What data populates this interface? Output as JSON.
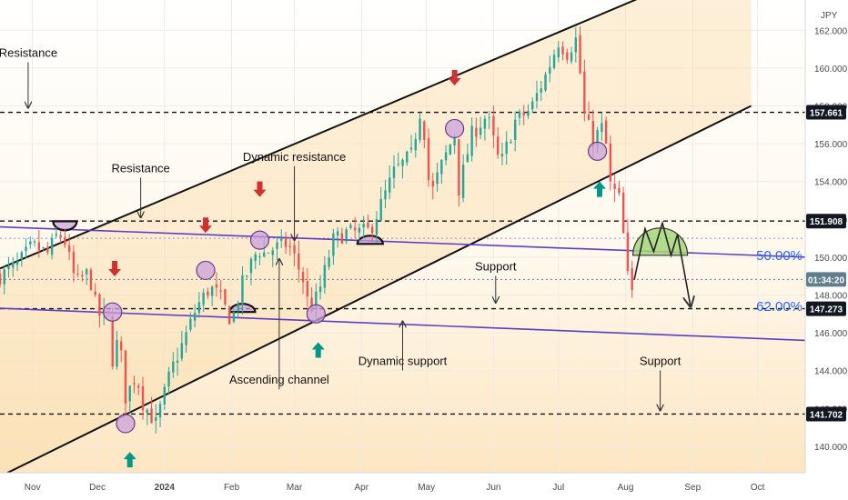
{
  "chart_data": {
    "type": "candlestick",
    "currency": "JPY",
    "ylim": [
      138.6,
      163.6
    ],
    "x_range": [
      "2023-10-17",
      "2024-10-23"
    ],
    "grid": true,
    "y_ticks": [
      140,
      142,
      144,
      146,
      148,
      150,
      152,
      154,
      156,
      158,
      160,
      162
    ],
    "x_ticks": [
      {
        "date": "2023-11-01",
        "label": "Nov"
      },
      {
        "date": "2023-12-01",
        "label": "Dec"
      },
      {
        "date": "2024-01-01",
        "label": "2024",
        "bold": true
      },
      {
        "date": "2024-02-01",
        "label": "Feb"
      },
      {
        "date": "2024-03-01",
        "label": "Mar"
      },
      {
        "date": "2024-04-01",
        "label": "Apr"
      },
      {
        "date": "2024-05-01",
        "label": "May"
      },
      {
        "date": "2024-06-01",
        "label": "Jun"
      },
      {
        "date": "2024-07-01",
        "label": "Jul"
      },
      {
        "date": "2024-08-01",
        "label": "Aug"
      },
      {
        "date": "2024-09-01",
        "label": "Sep"
      },
      {
        "date": "2024-10-01",
        "label": "Oct"
      }
    ],
    "price_path": [
      [
        "2023-10-17",
        149.0
      ],
      [
        "2023-10-25",
        149.6
      ],
      [
        "2023-11-01",
        150.6
      ],
      [
        "2023-11-08",
        150.2
      ],
      [
        "2023-11-13",
        151.3
      ],
      [
        "2023-11-16",
        150.8
      ],
      [
        "2023-11-21",
        148.6
      ],
      [
        "2023-11-27",
        149.2
      ],
      [
        "2023-12-01",
        147.0
      ],
      [
        "2023-12-06",
        146.8
      ],
      [
        "2023-12-08",
        144.6
      ],
      [
        "2023-12-11",
        145.8
      ],
      [
        "2023-12-14",
        142.6
      ],
      [
        "2023-12-19",
        143.8
      ],
      [
        "2023-12-22",
        142.3
      ],
      [
        "2023-12-28",
        141.2
      ],
      [
        "2024-01-04",
        144.0
      ],
      [
        "2024-01-10",
        145.6
      ],
      [
        "2024-01-16",
        147.4
      ],
      [
        "2024-01-22",
        148.4
      ],
      [
        "2024-01-26",
        148.0
      ],
      [
        "2024-02-01",
        146.6
      ],
      [
        "2024-02-06",
        148.6
      ],
      [
        "2024-02-13",
        150.4
      ],
      [
        "2024-02-16",
        150.2
      ],
      [
        "2024-02-21",
        150.5
      ],
      [
        "2024-02-27",
        150.7
      ],
      [
        "2024-03-01",
        150.0
      ],
      [
        "2024-03-05",
        148.8
      ],
      [
        "2024-03-08",
        147.2
      ],
      [
        "2024-03-12",
        148.0
      ],
      [
        "2024-03-19",
        150.9
      ],
      [
        "2024-03-25",
        151.3
      ],
      [
        "2024-03-29",
        151.3
      ],
      [
        "2024-04-05",
        151.4
      ],
      [
        "2024-04-10",
        152.8
      ],
      [
        "2024-04-16",
        154.5
      ],
      [
        "2024-04-24",
        155.4
      ],
      [
        "2024-04-29",
        158.2
      ],
      [
        "2024-05-01",
        155.0
      ],
      [
        "2024-05-03",
        153.2
      ],
      [
        "2024-05-07",
        154.6
      ],
      [
        "2024-05-14",
        156.5
      ],
      [
        "2024-05-16",
        153.6
      ],
      [
        "2024-05-22",
        156.5
      ],
      [
        "2024-05-29",
        157.5
      ],
      [
        "2024-06-04",
        154.8
      ],
      [
        "2024-06-11",
        157.2
      ],
      [
        "2024-06-18",
        157.8
      ],
      [
        "2024-06-25",
        159.6
      ],
      [
        "2024-07-01",
        161.4
      ],
      [
        "2024-07-05",
        160.8
      ],
      [
        "2024-07-10",
        161.7
      ],
      [
        "2024-07-12",
        157.8
      ],
      [
        "2024-07-17",
        156.2
      ],
      [
        "2024-07-22",
        157.0
      ],
      [
        "2024-07-25",
        153.8
      ],
      [
        "2024-07-30",
        152.9
      ],
      [
        "2024-08-01",
        149.4
      ],
      [
        "2024-08-05",
        147.6
      ]
    ]
  },
  "levels": [
    {
      "price": 157.661,
      "label": "157.661"
    },
    {
      "price": 151.908,
      "label": "151.908"
    },
    {
      "price": 147.273,
      "label": "147.273"
    },
    {
      "price": 141.702,
      "label": "141.702"
    }
  ],
  "live_price": {
    "price": 148.82,
    "countdown": "01:34:20"
  },
  "fib_levels": [
    {
      "label": "50.00%",
      "price": 150.1
    },
    {
      "label": "62.00%",
      "price": 147.4
    }
  ],
  "annotations": [
    {
      "text": "Resistance",
      "date": "2023-10-30",
      "price": 160.6,
      "arrow_to": 157.9
    },
    {
      "text": "Resistance",
      "date": "2023-12-21",
      "price": 154.5,
      "arrow_to": 152.1
    },
    {
      "text": "Dynamic resistance",
      "date": "2024-03-01",
      "price": 155.1,
      "arrow_to": 150.9
    },
    {
      "text": "Ascending channel",
      "date": "2024-02-23",
      "price": 143.3,
      "arrow_to": 149.9
    },
    {
      "text": "Dynamic support",
      "date": "2024-04-20",
      "price": 144.3,
      "arrow_to": 146.6
    },
    {
      "text": "Support",
      "date": "2024-06-02",
      "price": 149.3,
      "arrow_to": 147.6
    },
    {
      "text": "Support",
      "date": "2024-08-17",
      "price": 144.3,
      "arrow_to": 141.9
    }
  ],
  "colors": {
    "up": "#26a69a",
    "down": "#ef5350",
    "channel": "#111111",
    "purple_line": "#5a3ec8",
    "level_line": "#111111",
    "marker_down": "#d32f2f",
    "marker_up": "#009688",
    "circle_fill": "#c9a0dc",
    "fib_text": "#2962ff",
    "price_badge": "#131722",
    "live_badge": "#607d8b",
    "dome_fill": "#a5d67a"
  }
}
